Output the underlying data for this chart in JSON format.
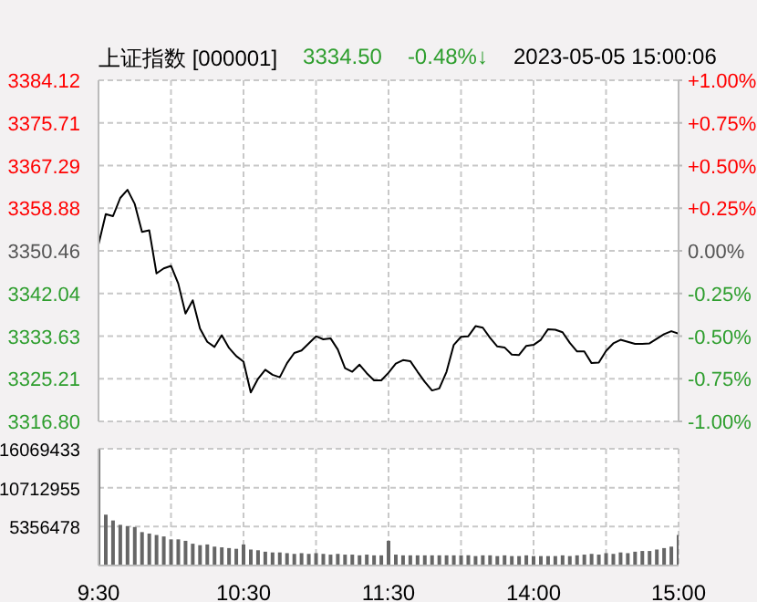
{
  "chart_data": [
    {
      "type": "line",
      "title": "上证指数 [000001]",
      "annotations": [
        "3334.50",
        "-0.48%↓",
        "2023-05-05 15:00:06"
      ],
      "categories": [
        null,
        null,
        null,
        null,
        null,
        null,
        null,
        null,
        null,
        null,
        null,
        null,
        null,
        null,
        null,
        null,
        null,
        null,
        null,
        null,
        null,
        null,
        null,
        null,
        null,
        null,
        null,
        null,
        null,
        null,
        null,
        null,
        null,
        null,
        null,
        null,
        null,
        null,
        null,
        null,
        null,
        null,
        null,
        null,
        null,
        null,
        null,
        null,
        null,
        null,
        null,
        null,
        null,
        null,
        null,
        null,
        null,
        null,
        null,
        null,
        null,
        null,
        null,
        null,
        null,
        null,
        null,
        null,
        null,
        null,
        null,
        null,
        null,
        null,
        null,
        null,
        null,
        null,
        null,
        null,
        null
      ],
      "series": [
        {
          "color": "#000000",
          "values": [
            3351.7,
            3357.7,
            3357.3,
            3360.9,
            3362.5,
            3359.7,
            3354.2,
            3354.5,
            3346.0,
            3347.0,
            3347.5,
            3344.0,
            3338.1,
            3340.7,
            3335.1,
            3332.5,
            3331.5,
            3333.8,
            3331.3,
            3329.7,
            3328.6,
            3322.5,
            3325.2,
            3327.0,
            3326.0,
            3325.5,
            3328.3,
            3330.3,
            3330.8,
            3332.2,
            3333.6,
            3333.0,
            3333.2,
            3331.0,
            3327.3,
            3326.6,
            3328.0,
            3326.3,
            3324.9,
            3324.9,
            3326.4,
            3328.2,
            3328.9,
            3328.7,
            3326.6,
            3324.6,
            3322.9,
            3323.3,
            3326.6,
            3331.9,
            3333.5,
            3333.6,
            3335.6,
            3335.3,
            3333.3,
            3331.6,
            3331.4,
            3330.0,
            3329.9,
            3331.7,
            3331.9,
            3332.9,
            3335.0,
            3334.9,
            3334.4,
            3332.3,
            3330.6,
            3330.6,
            3328.3,
            3328.4,
            3330.7,
            3332.2,
            3332.9,
            3332.5,
            3332.1,
            3332.1,
            3332.2,
            3333.1,
            3334.0,
            3334.6,
            3334.1
          ]
        }
      ],
      "ylim": [
        3316.8,
        3384.12
      ],
      "yticks": [
        {
          "value": 3316.8,
          "label": "3316.80"
        },
        3325.21,
        3333.63,
        3342.04,
        3350.46,
        3358.88,
        3367.29,
        3375.71,
        3384.12
      ],
      "y2lim": [
        -1,
        1
      ],
      "y2ticks": [
        {
          "value": -1,
          "label": "-1.00%"
        },
        {
          "value": -0.75,
          "label": "-0.75%"
        },
        {
          "value": -0.5,
          "label": "-0.50%"
        },
        {
          "value": -0.25,
          "label": "-0.25%"
        },
        {
          "value": 0,
          "label": "0.00%"
        },
        {
          "value": 0.25,
          "label": "+0.25%"
        },
        {
          "value": 0.5,
          "label": "+0.50%"
        },
        {
          "value": 0.75,
          "label": "+0.75%"
        },
        {
          "value": 1,
          "label": "+1.00%"
        }
      ],
      "grid": true,
      "tick_labels": "y"
    },
    {
      "type": "bar",
      "categories": [
        "9:30",
        null,
        null,
        null,
        null,
        null,
        null,
        null,
        null,
        null,
        null,
        null,
        null,
        null,
        null,
        null,
        null,
        null,
        null,
        null,
        "10:30",
        null,
        null,
        null,
        null,
        null,
        null,
        null,
        null,
        null,
        null,
        null,
        null,
        null,
        null,
        null,
        null,
        null,
        null,
        null,
        "11:30",
        null,
        null,
        null,
        null,
        null,
        null,
        null,
        null,
        null,
        null,
        null,
        null,
        null,
        null,
        null,
        null,
        null,
        null,
        null,
        "14:00",
        null,
        null,
        null,
        null,
        null,
        null,
        null,
        null,
        null,
        null,
        null,
        null,
        null,
        null,
        null,
        null,
        null,
        null,
        null,
        "15:00"
      ],
      "series": [
        {
          "color": "#666666",
          "values": [
            16000000,
            7000000,
            6200000,
            5600000,
            5400000,
            5300000,
            4600000,
            4400000,
            4200000,
            4000000,
            3600000,
            3600000,
            3400000,
            3000000,
            2800000,
            2900000,
            2600000,
            2500000,
            2400000,
            2300000,
            2900000,
            2200000,
            2100000,
            1900000,
            1800000,
            1800000,
            1700000,
            1600000,
            1700000,
            1600000,
            1700000,
            1600000,
            1500000,
            1600000,
            1500000,
            1500000,
            1400000,
            1500000,
            1400000,
            1400000,
            3400000,
            1500000,
            1400000,
            1400000,
            1400000,
            1400000,
            1400000,
            1400000,
            1400000,
            1400000,
            1400000,
            1400000,
            1300000,
            1400000,
            1400000,
            1300000,
            1400000,
            1300000,
            1300000,
            1400000,
            1300000,
            1300000,
            1300000,
            1300000,
            1400000,
            1300000,
            1400000,
            1500000,
            1600000,
            1500000,
            1700000,
            1600000,
            1800000,
            1700000,
            1900000,
            2000000,
            2000000,
            2200000,
            2400000,
            2600000,
            4200000
          ]
        }
      ],
      "ylim": [
        0,
        16069433
      ],
      "yticks": [
        5356478,
        10712955,
        16069433
      ],
      "grid": true
    }
  ]
}
